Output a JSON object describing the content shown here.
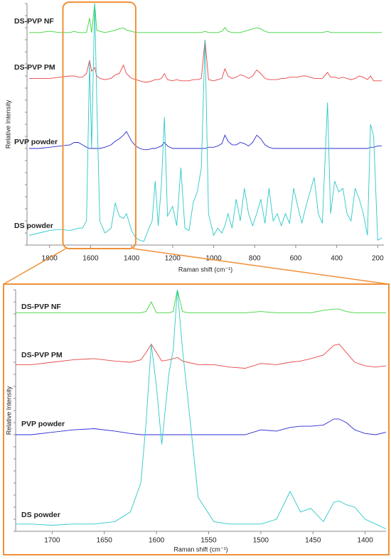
{
  "chart_data": [
    {
      "type": "line",
      "x_label": "Raman shift (cm⁻¹)",
      "y_label": "Relative Intensity",
      "xlim": [
        1910,
        170
      ],
      "ylim": [
        0,
        100
      ],
      "xticks": [
        1800,
        1600,
        1400,
        1200,
        1000,
        800,
        600,
        400,
        200
      ],
      "x": [
        1900,
        1850,
        1800,
        1750,
        1700,
        1680,
        1660,
        1640,
        1620,
        1605,
        1595,
        1580,
        1570,
        1555,
        1530,
        1500,
        1480,
        1460,
        1440,
        1425,
        1400,
        1380,
        1360,
        1340,
        1320,
        1300,
        1285,
        1270,
        1255,
        1240,
        1225,
        1200,
        1180,
        1160,
        1140,
        1120,
        1100,
        1080,
        1060,
        1042,
        1025,
        1000,
        980,
        960,
        945,
        930,
        910,
        890,
        870,
        850,
        830,
        810,
        790,
        770,
        750,
        730,
        710,
        690,
        670,
        650,
        630,
        610,
        590,
        570,
        550,
        530,
        510,
        490,
        470,
        445,
        430,
        410,
        390,
        370,
        350,
        330,
        310,
        290,
        270,
        250,
        235,
        220,
        200,
        180
      ],
      "series": [
        {
          "name": "DS-PVP NF",
          "color": "#3cd63c",
          "values": [
            88,
            88,
            88.5,
            88,
            88,
            88.5,
            88,
            88,
            88,
            94,
            88,
            100,
            89,
            88.5,
            88,
            88.5,
            89,
            89.5,
            90,
            89,
            88.5,
            88,
            88,
            88,
            88,
            88,
            88,
            88,
            88,
            88,
            88,
            88,
            88,
            88,
            88,
            88,
            88,
            88,
            88,
            88.5,
            88,
            88,
            88,
            88.5,
            90,
            88.5,
            88,
            88,
            88,
            88.5,
            89,
            89.5,
            90,
            89.5,
            88.5,
            88,
            88,
            88,
            88,
            88,
            88,
            88,
            88,
            88,
            88,
            88,
            88,
            88,
            88,
            88.5,
            88,
            88,
            88,
            88,
            88,
            88,
            88,
            88,
            88,
            88,
            88,
            88,
            88,
            88
          ]
        },
        {
          "name": "DS-PVP PM",
          "color": "#e84545",
          "values": [
            69,
            69,
            69,
            69.5,
            70,
            70,
            69.5,
            69.5,
            71,
            76.5,
            72,
            73.5,
            70,
            69,
            68.5,
            69,
            70.5,
            71,
            74.5,
            71,
            69,
            68.5,
            68,
            67.5,
            67.5,
            68,
            68.5,
            68.5,
            69,
            71,
            68.5,
            68,
            68.5,
            68,
            68,
            68,
            68.5,
            68.5,
            69,
            85,
            68.5,
            68,
            68.5,
            69,
            73,
            70,
            69,
            69.5,
            70.5,
            70,
            69,
            70,
            72.5,
            71,
            69,
            68.5,
            68.5,
            68.5,
            69,
            69,
            69.5,
            69.5,
            69.5,
            70,
            70,
            69.5,
            69,
            69,
            69,
            71.5,
            69.5,
            69.5,
            69,
            69.5,
            69,
            68.5,
            69,
            70,
            69.5,
            68.5,
            70,
            68,
            68,
            68
          ]
        },
        {
          "name": "PVP powder",
          "color": "#2a2ad0",
          "values": [
            40,
            40,
            40.5,
            41,
            41.5,
            42.5,
            42.5,
            41.5,
            40.5,
            40,
            40,
            40,
            40,
            40,
            40.5,
            41.5,
            43,
            44,
            45.5,
            47,
            43,
            41,
            40,
            39.5,
            39.5,
            40,
            40,
            40.5,
            41,
            42.5,
            41,
            40,
            40,
            40,
            40,
            40,
            40,
            40,
            40,
            40,
            40.5,
            40.5,
            41,
            42,
            45.5,
            43,
            41.5,
            41.5,
            42.5,
            42,
            41,
            42.5,
            45.5,
            44,
            41.5,
            40.5,
            40,
            40,
            40,
            40,
            40,
            40,
            40,
            40,
            40,
            40,
            40,
            40,
            40,
            40,
            40,
            40,
            40,
            40,
            40,
            40,
            40,
            40,
            40,
            40,
            40.5,
            40.5,
            41,
            41
          ]
        },
        {
          "name": "DS powder",
          "color": "#2cc8c8",
          "values": [
            4,
            5,
            6,
            6.5,
            6,
            6.5,
            7,
            7,
            10,
            76,
            40,
            100,
            60,
            10,
            5,
            7,
            17.5,
            12,
            11,
            13,
            6,
            3,
            2,
            1.5,
            6,
            10,
            26.5,
            8,
            25,
            53,
            12,
            16,
            8,
            32,
            7,
            6,
            17.5,
            22,
            32,
            85,
            13,
            4,
            7,
            5,
            8,
            13,
            7,
            19,
            10,
            23.5,
            13,
            8,
            13,
            19,
            9,
            23.5,
            10,
            13,
            8,
            13,
            9,
            23.5,
            16,
            9,
            16,
            22,
            28,
            13,
            9,
            59,
            13,
            26.5,
            22,
            23.5,
            13,
            10,
            23.5,
            19,
            13,
            4,
            50,
            45,
            2,
            3
          ]
        }
      ]
    },
    {
      "type": "line",
      "x_label": "Raman shift (cm⁻¹)",
      "y_label": "Relative Intensity",
      "xlim": [
        1735,
        1380
      ],
      "ylim": [
        0,
        100
      ],
      "xticks": [
        1700,
        1650,
        1600,
        1550,
        1500,
        1450,
        1400
      ],
      "x": [
        1735,
        1720,
        1700,
        1680,
        1660,
        1640,
        1625,
        1615,
        1610,
        1605,
        1600,
        1595,
        1588,
        1584,
        1580,
        1575,
        1570,
        1560,
        1545,
        1530,
        1515,
        1500,
        1485,
        1472,
        1462,
        1452,
        1440,
        1430,
        1425,
        1418,
        1410,
        1400,
        1390,
        1380
      ],
      "series": [
        {
          "name": "DS-PVP NF",
          "color": "#3cd63c",
          "values": [
            90.5,
            90.5,
            90.5,
            90.5,
            90.5,
            90.5,
            90.5,
            90.5,
            91,
            95,
            90.5,
            90.5,
            90.5,
            91,
            100,
            91,
            90.5,
            90.5,
            90.5,
            90.5,
            90.5,
            91,
            90.5,
            90.5,
            90.5,
            90.5,
            91.5,
            92,
            92,
            91,
            90.5,
            90.5,
            90.5,
            90.5
          ]
        },
        {
          "name": "DS-PVP PM",
          "color": "#e84545",
          "values": [
            69,
            69,
            70,
            71,
            71.5,
            70.5,
            70,
            71,
            74,
            77.5,
            74,
            70.5,
            71,
            71.5,
            72,
            70.5,
            70,
            69,
            69,
            68,
            67.5,
            69.5,
            69,
            70,
            70.5,
            71.5,
            73,
            77,
            77.5,
            74,
            70,
            68.5,
            68,
            68.5
          ]
        },
        {
          "name": "PVP powder",
          "color": "#2a2ad0",
          "values": [
            40,
            40,
            41,
            42,
            42.5,
            41.5,
            40.5,
            40,
            40,
            40,
            40,
            40,
            40,
            40,
            40,
            40,
            40,
            40,
            40,
            40,
            40,
            42,
            41.5,
            43,
            43.5,
            43.5,
            44,
            46.5,
            46.5,
            45,
            42,
            40.5,
            40,
            41
          ]
        },
        {
          "name": "DS powder",
          "color": "#2cc8c8",
          "values": [
            3,
            3,
            2.5,
            3,
            3,
            4,
            8,
            20,
            45,
            77.5,
            60,
            36,
            65.5,
            75,
            100,
            75,
            55,
            14,
            4,
            3,
            3,
            3,
            5,
            16.5,
            8,
            9.5,
            4,
            12,
            12.6,
            11,
            10,
            5,
            3,
            1
          ]
        }
      ]
    }
  ]
}
